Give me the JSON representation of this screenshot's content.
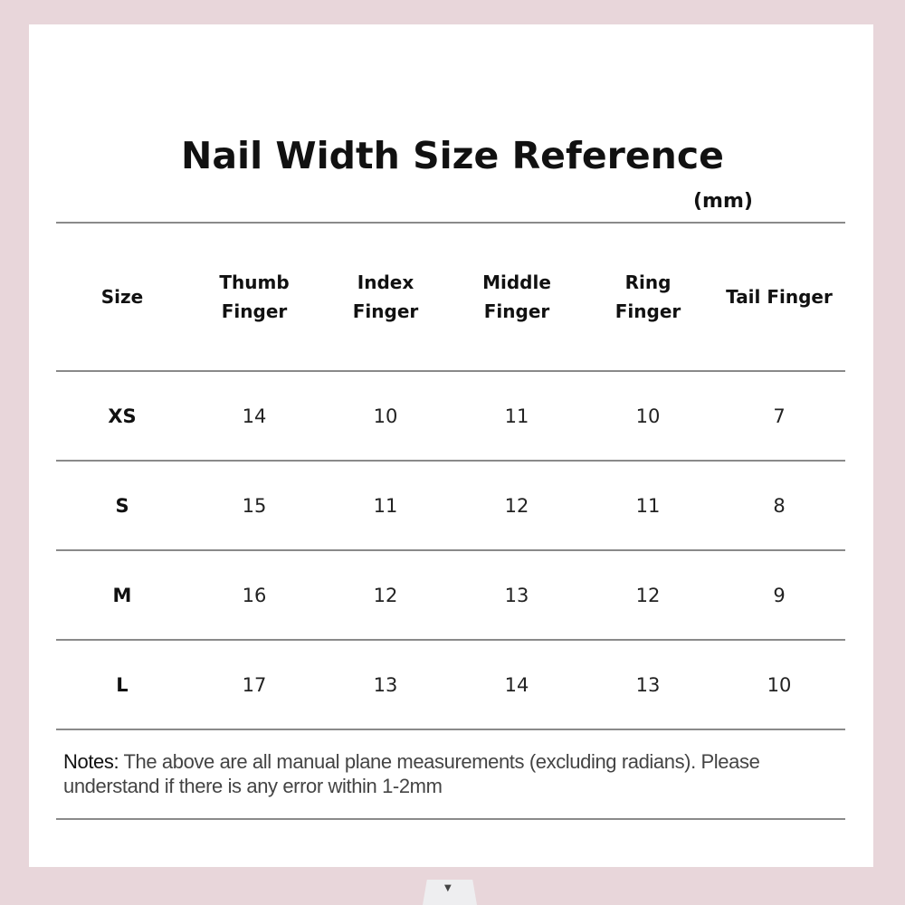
{
  "title": "Nail Width Size Reference",
  "unit": "(mm)",
  "table": {
    "headers": [
      "Size",
      "Thumb\nFinger",
      "Index\nFinger",
      "Middle\nFinger",
      "Ring\nFinger",
      "Tail Finger"
    ],
    "rows": [
      [
        "XS",
        "14",
        "10",
        "11",
        "10",
        "7"
      ],
      [
        "S",
        "15",
        "11",
        "12",
        "11",
        "8"
      ],
      [
        "M",
        "16",
        "12",
        "13",
        "12",
        "9"
      ],
      [
        "L",
        "17",
        "13",
        "14",
        "13",
        "10"
      ]
    ]
  },
  "notes": {
    "label": "Notes:",
    "text": " The above are all manual plane measurements (excluding radians). Please understand if there is any error within 1-2mm"
  },
  "scroll_tab": {
    "icon": "triangle-down-icon",
    "glyph": "▼"
  },
  "colors": {
    "frame": "#e8d6da",
    "background": "#ffffff"
  }
}
